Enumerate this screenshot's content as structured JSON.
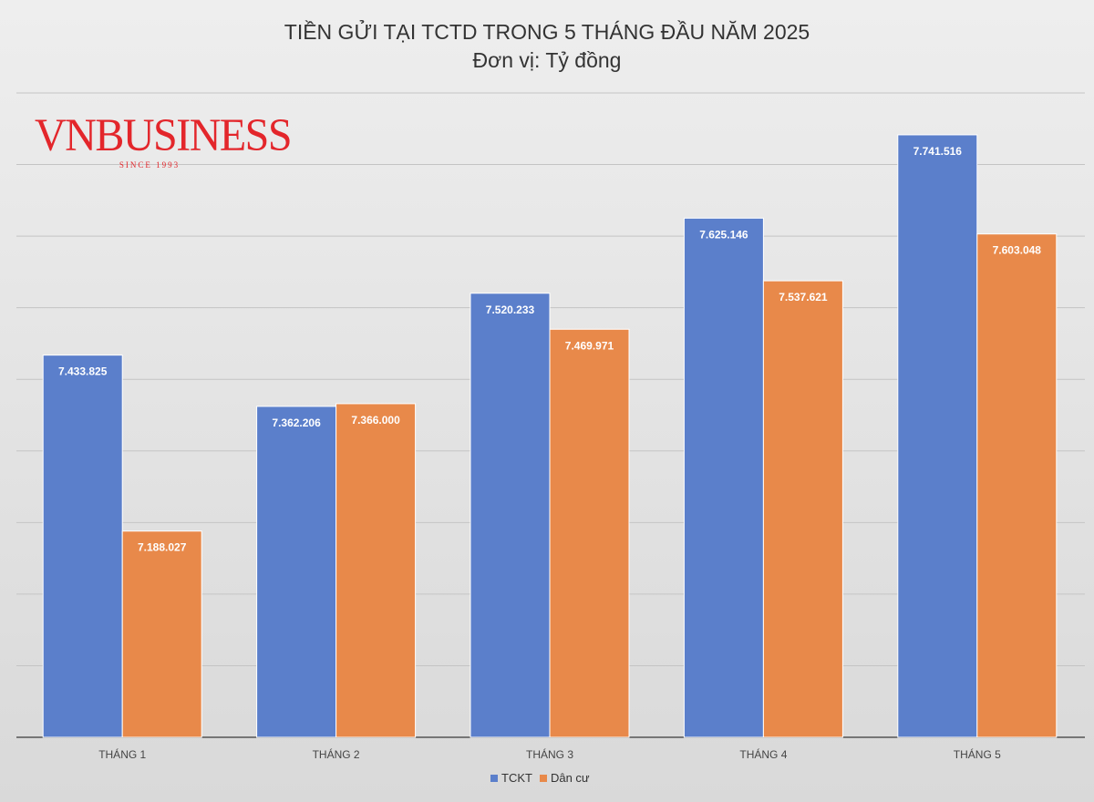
{
  "chart_data": {
    "type": "bar",
    "title": "TIỀN GỬI TẠI TCTD TRONG 5 THÁNG ĐẦU NĂM 2025",
    "subtitle": "Đơn vị: Tỷ đồng",
    "categories": [
      "THÁNG 1",
      "THÁNG 2",
      "THÁNG 3",
      "THÁNG 4",
      "THÁNG 5"
    ],
    "series": [
      {
        "name": "TCKT",
        "color": "#5b7fcb",
        "values": [
          7433825,
          7362206,
          7520233,
          7625146,
          7741516
        ],
        "labels": [
          "7.433.825",
          "7.362.206",
          "7.520.233",
          "7.625.146",
          "7.741.516"
        ]
      },
      {
        "name": "Dân cư",
        "color": "#e8894a",
        "values": [
          7188027,
          7366000,
          7469971,
          7537621,
          7603048
        ],
        "labels": [
          "7.188.027",
          "7.366.000",
          "7.469.971",
          "7.537.621",
          "7.603.048"
        ]
      }
    ],
    "ylim": [
      6900000,
      7800000
    ],
    "grid": true,
    "legend": "bottom",
    "xlabel": "",
    "ylabel": ""
  },
  "logo": {
    "brand": "VNBUSINESS",
    "since": "SINCE 1993",
    "color": "#e3262b"
  }
}
